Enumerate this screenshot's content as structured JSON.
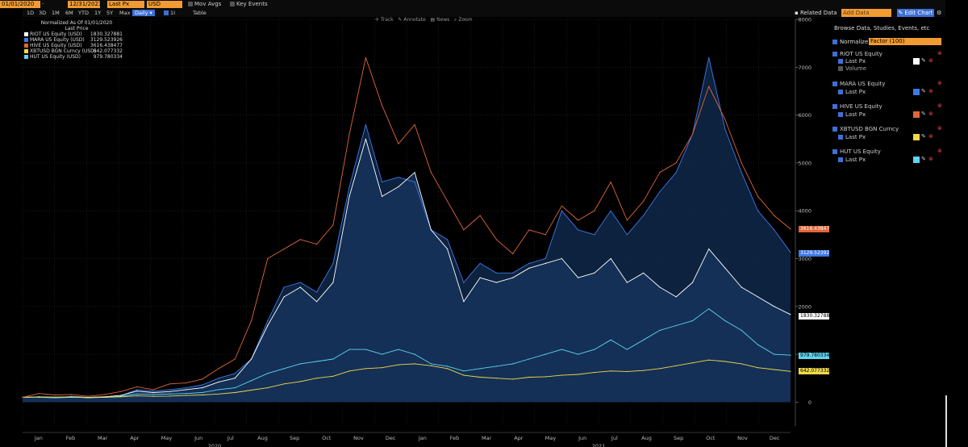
{
  "toolbar": {
    "start_date": "01/01/2020",
    "end_date": "12/31/2021",
    "field": "Last Px",
    "currency": "USD",
    "mov_avgs": "Mov Avgs",
    "key_events": "Key Events"
  },
  "ranges": [
    "1D",
    "3D",
    "1M",
    "6M",
    "YTD",
    "1Y",
    "5Y",
    "Max"
  ],
  "frequency": "Daily",
  "interval": "1I",
  "table_label": "Table",
  "chart_tools": [
    "Track",
    "Annotate",
    "News",
    "Zoom"
  ],
  "header_right": {
    "related": "Related Data",
    "add_data": "Add Data",
    "edit_chart": "Edit Chart"
  },
  "panel": {
    "browse": "Browse Data, Studies, Events, etc",
    "normalize": "Normalize",
    "factor": "Factor (100)",
    "securities": [
      {
        "name": "RIOT US Equity",
        "field": "Last Px",
        "extra": "Volume",
        "color": "#ffffff"
      },
      {
        "name": "MARA US Equity",
        "field": "Last Px",
        "color": "#3e78e8"
      },
      {
        "name": "HIVE US Equity",
        "field": "Last Px",
        "color": "#e0663a"
      },
      {
        "name": "XBTUSD BGN Curncy",
        "field": "Last Px",
        "color": "#f0d84a"
      },
      {
        "name": "HUT US Equity",
        "field": "Last Px",
        "color": "#5fd3f0"
      }
    ]
  },
  "chart_data": {
    "type": "line",
    "title": "Normalized As Of 01/01/2020",
    "subtitle": "Last Price",
    "x_labels": [
      "Jan",
      "Feb",
      "Mar",
      "Apr",
      "May",
      "Jun",
      "Jul",
      "Aug",
      "Sep",
      "Oct",
      "Nov",
      "Dec",
      "Jan",
      "Feb",
      "Mar",
      "Apr",
      "May",
      "Jun",
      "Jul",
      "Aug",
      "Sep",
      "Oct",
      "Nov",
      "Dec"
    ],
    "years": [
      "2020",
      "2021"
    ],
    "y_ticks": [
      0,
      1000,
      2000,
      3000,
      4000,
      5000,
      6000,
      7000,
      8000
    ],
    "ylim": [
      -500,
      8000
    ],
    "series": [
      {
        "name": "HIVE US Equity (USD)",
        "last": "3616.438477",
        "color": "#e0663a",
        "values": [
          100,
          180,
          150,
          160,
          120,
          160,
          220,
          320,
          260,
          380,
          400,
          480,
          700,
          900,
          1700,
          3000,
          3200,
          3400,
          3300,
          3700,
          5600,
          7200,
          6200,
          5400,
          5800,
          4800,
          4200,
          3600,
          3900,
          3400,
          3100,
          3600,
          3500,
          4100,
          3800,
          4000,
          4600,
          3800,
          4200,
          4800,
          5000,
          5600,
          6600,
          5900,
          5000,
          4300,
          3900,
          3616
        ]
      },
      {
        "name": "MARA US Equity (USD)",
        "last": "3129.523926",
        "color": "#3e78e8",
        "values": [
          100,
          110,
          90,
          120,
          100,
          110,
          130,
          260,
          230,
          260,
          300,
          360,
          500,
          600,
          900,
          1700,
          2400,
          2500,
          2300,
          2900,
          4500,
          5800,
          4600,
          4700,
          4600,
          3600,
          3400,
          2500,
          2900,
          2700,
          2700,
          2900,
          3000,
          4000,
          3600,
          3500,
          4000,
          3500,
          3900,
          4400,
          4800,
          5600,
          7200,
          5700,
          4800,
          4000,
          3600,
          3130
        ]
      },
      {
        "name": "RIOT US Equity (USD)",
        "last": "1830.327881",
        "color": "#ffffff",
        "values": [
          100,
          110,
          95,
          110,
          100,
          110,
          140,
          230,
          200,
          220,
          260,
          300,
          420,
          500,
          900,
          1600,
          2200,
          2400,
          2100,
          2500,
          4300,
          5500,
          4300,
          4500,
          4800,
          3600,
          3200,
          2100,
          2600,
          2500,
          2600,
          2800,
          2900,
          3000,
          2600,
          2700,
          3000,
          2500,
          2700,
          2400,
          2200,
          2500,
          3200,
          2800,
          2400,
          2200,
          2000,
          1830
        ]
      },
      {
        "name": "HUT US Equity (USD)",
        "last": "979.780334",
        "color": "#5fd3f0",
        "values": [
          100,
          100,
          90,
          100,
          95,
          100,
          120,
          170,
          160,
          170,
          180,
          200,
          260,
          300,
          450,
          600,
          700,
          800,
          850,
          900,
          1100,
          1100,
          1000,
          1100,
          1000,
          800,
          750,
          650,
          700,
          750,
          800,
          900,
          1000,
          1100,
          1000,
          1100,
          1300,
          1100,
          1300,
          1500,
          1600,
          1700,
          1950,
          1700,
          1500,
          1200,
          1000,
          980
        ]
      },
      {
        "name": "XBTUSD BGN Curncy (USD)",
        "last": "642.077332",
        "color": "#f0d84a",
        "values": [
          100,
          110,
          105,
          110,
          90,
          100,
          110,
          130,
          120,
          125,
          140,
          150,
          170,
          200,
          250,
          300,
          380,
          430,
          500,
          540,
          650,
          700,
          720,
          780,
          800,
          760,
          700,
          560,
          520,
          500,
          480,
          520,
          530,
          560,
          580,
          620,
          650,
          640,
          660,
          700,
          760,
          820,
          880,
          850,
          800,
          720,
          680,
          642
        ]
      }
    ]
  }
}
